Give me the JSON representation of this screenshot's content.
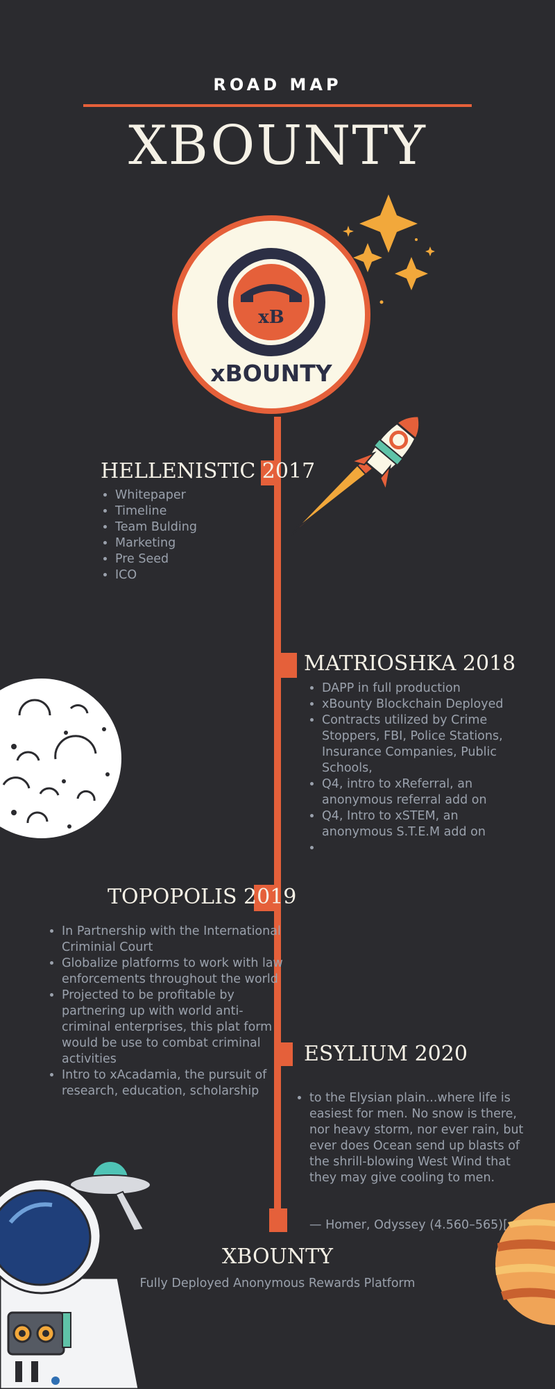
{
  "header": {
    "label": "ROAD MAP",
    "title": "XBOUNTY"
  },
  "logo": {
    "badge_text": "xB",
    "wordmark": "xBOUNTY"
  },
  "phases": [
    {
      "title": "HELLENISTIC 2017",
      "items": [
        "Whitepaper",
        "Timeline",
        "Team Bulding",
        "Marketing",
        "Pre Seed",
        "ICO"
      ]
    },
    {
      "title": "MATRIOSHKA 2018",
      "items": [
        "DAPP in full production",
        "xBounty Blockchain Deployed",
        "Contracts utilized by Crime Stoppers, FBI, Police Stations, Insurance Companies, Public Schools,",
        "Q4, intro to xReferral, an anonymous referral add on",
        "Q4, Intro to xSTEM, an anonymous S.T.E.M  add on",
        ""
      ]
    },
    {
      "title": "TOPOPOLIS 2019",
      "items": [
        "In Partnership with the International Criminial Court",
        "Globalize platforms to work with law enforcements throughout the world",
        "Projected to be profitable by partnering up with world anti-criminal enterprises, this plat form would be use to combat criminal activities",
        "Intro to xAcadamia, the pursuit of research, education, scholarship"
      ]
    },
    {
      "title": "ESYLIUM 2020",
      "items": [
        "to the Elysian plain...where life is easiest for men. No snow is there, nor heavy storm, nor ever rain, but ever does Ocean send up blasts of the shrill-blowing West Wind that they may give cooling to men."
      ],
      "attribution": "— Homer, Odyssey (4.560–565)["
    }
  ],
  "footer": {
    "title": "XBOUNTY",
    "subtitle": "Fully Deployed Anonymous Rewards Platform"
  },
  "colors": {
    "background": "#2b2b2f",
    "accent": "#e5603a",
    "cream": "#fbf7e6",
    "navy": "#2c2f45",
    "star": "#f2a83b",
    "muted_text": "#9aa1ac"
  },
  "illustrations": [
    "stars-icon",
    "rocket-icon",
    "moon-icon",
    "astronaut-icon",
    "ufo-icon",
    "planet-icon"
  ]
}
